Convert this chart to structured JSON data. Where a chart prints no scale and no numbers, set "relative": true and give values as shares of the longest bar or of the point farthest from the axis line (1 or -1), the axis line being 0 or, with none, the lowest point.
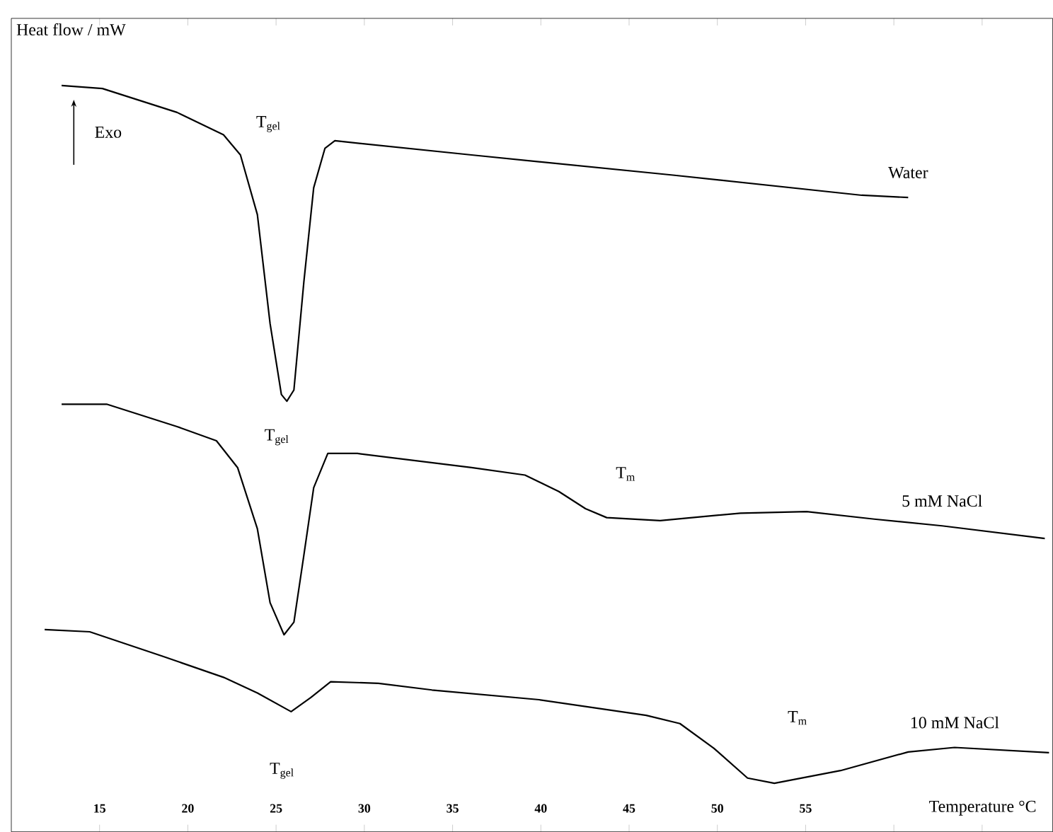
{
  "chart_data": {
    "type": "line",
    "relative": true,
    "xlabel": "Temperature °C",
    "ylabel": "Heat flow / mW",
    "xlim": [
      10,
      69
    ],
    "xticks": [
      15,
      20,
      25,
      30,
      35,
      40,
      45,
      50,
      55,
      {
        "value": 60,
        "label": null
      },
      {
        "value": 65,
        "label": null
      }
    ],
    "tick_labels": "x",
    "grid": false,
    "legend": false,
    "marker": "none",
    "line_style": "solid",
    "series": [
      {
        "name": "Water",
        "color": "#000000",
        "x": [
          12.85,
          15.16,
          19.39,
          22.02,
          22.98,
          23.94,
          24.66,
          25.3,
          25.61,
          26.01,
          26.57,
          27.13,
          27.77,
          28.33,
          36.07,
          47.48,
          58.18,
          60.81
        ],
        "values": [
          1.0,
          0.996,
          0.964,
          0.934,
          0.907,
          0.827,
          0.681,
          0.586,
          0.577,
          0.592,
          0.736,
          0.863,
          0.916,
          0.926,
          0.907,
          0.88,
          0.853,
          0.85
        ]
      },
      {
        "name": "5 mM NaCl",
        "color": "#000000",
        "x": [
          12.85,
          15.4,
          19.39,
          21.62,
          22.82,
          23.94,
          24.66,
          25.45,
          26.01,
          26.57,
          27.13,
          27.93,
          29.61,
          36.07,
          39.1,
          41.02,
          42.53,
          43.73,
          46.76,
          51.31,
          55.06,
          58.89,
          62.73,
          68.55
        ],
        "values": [
          0.573,
          0.573,
          0.543,
          0.524,
          0.488,
          0.406,
          0.307,
          0.264,
          0.281,
          0.37,
          0.461,
          0.507,
          0.507,
          0.488,
          0.478,
          0.456,
          0.433,
          0.421,
          0.417,
          0.427,
          0.429,
          0.419,
          0.41,
          0.393
        ]
      },
      {
        "name": "10 mM NaCl",
        "color": "#000000",
        "x": [
          11.89,
          14.44,
          18.59,
          22.02,
          23.94,
          25.85,
          26.97,
          28.09,
          30.8,
          33.83,
          39.9,
          45.97,
          47.88,
          49.8,
          51.71,
          53.23,
          56.98,
          60.81,
          63.44,
          68.79
        ],
        "values": [
          0.271,
          0.268,
          0.235,
          0.207,
          0.186,
          0.161,
          0.18,
          0.201,
          0.199,
          0.19,
          0.177,
          0.156,
          0.145,
          0.112,
          0.072,
          0.065,
          0.082,
          0.107,
          0.113,
          0.106
        ]
      }
    ],
    "annotations": [
      "Exo",
      "T$_{gel}$",
      "T$_{gel}$",
      "T$_{m}$",
      "T$_{gel}$",
      "T$_{m}$"
    ]
  }
}
